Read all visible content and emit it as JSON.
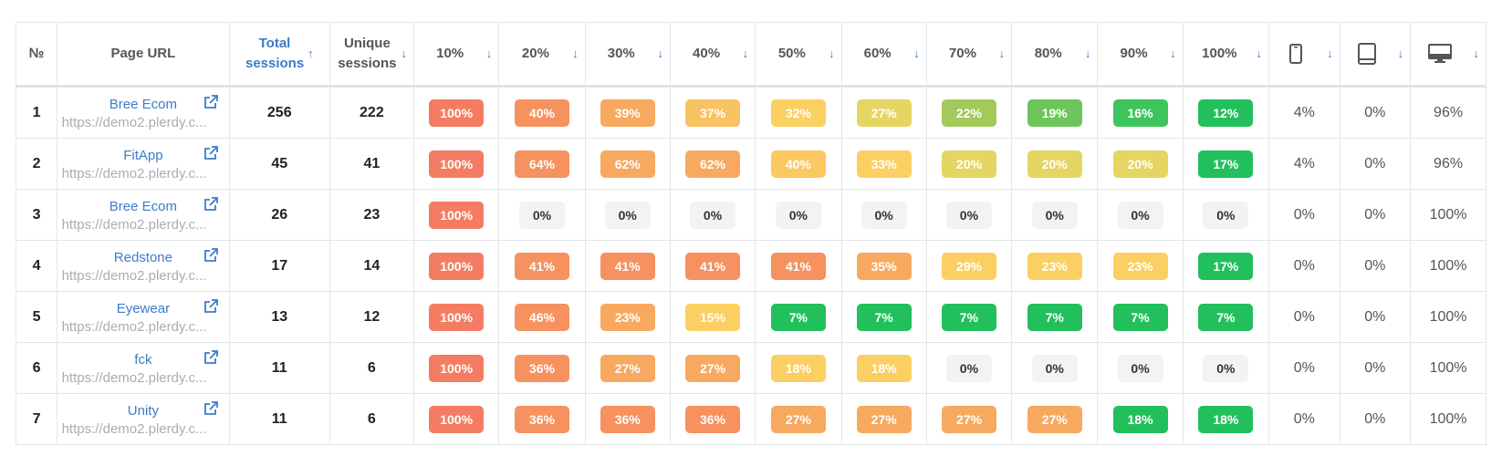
{
  "headers": {
    "num": "№",
    "page_url": "Page URL",
    "total_sessions": "Total sessions",
    "unique_sessions": "Unique sessions",
    "scroll": [
      "10%",
      "20%",
      "30%",
      "40%",
      "50%",
      "60%",
      "70%",
      "80%",
      "90%",
      "100%"
    ],
    "devices": [
      "mobile-icon",
      "tablet-icon",
      "desktop-icon"
    ],
    "sort_desc": "↓",
    "sort_asc": "↑"
  },
  "colors": {
    "accent": "#3d7cc9",
    "scale": [
      "#f47c62",
      "#f5925f",
      "#f7a960",
      "#f9c262",
      "#fbd062",
      "#e5d562",
      "#a3c95a",
      "#6dc65b",
      "#3ec45c",
      "#21c05c"
    ]
  },
  "rows": [
    {
      "num": "1",
      "name": "Bree Ecom",
      "url": "https://demo2.plerdy.c...",
      "total": "256",
      "unique": "222",
      "scroll": [
        "100%",
        "40%",
        "39%",
        "37%",
        "32%",
        "27%",
        "22%",
        "19%",
        "16%",
        "12%"
      ],
      "colors": [
        "#f47c62",
        "#f5925f",
        "#f7a960",
        "#f9c262",
        "#fbd062",
        "#e5d562",
        "#a3c95a",
        "#6dc65b",
        "#3ec45c",
        "#21c05c"
      ],
      "devices": [
        "4%",
        "0%",
        "96%"
      ]
    },
    {
      "num": "2",
      "name": "FitApp",
      "url": "https://demo2.plerdy.c...",
      "total": "45",
      "unique": "41",
      "scroll": [
        "100%",
        "64%",
        "62%",
        "62%",
        "40%",
        "33%",
        "20%",
        "20%",
        "20%",
        "17%"
      ],
      "colors": [
        "#f47c62",
        "#f5925f",
        "#f7a960",
        "#f7a960",
        "#fbc862",
        "#fbd062",
        "#e5d562",
        "#e5d562",
        "#e5d562",
        "#21c05c"
      ],
      "devices": [
        "4%",
        "0%",
        "96%"
      ]
    },
    {
      "num": "3",
      "name": "Bree Ecom",
      "url": "https://demo2.plerdy.c...",
      "total": "26",
      "unique": "23",
      "scroll": [
        "100%",
        "0%",
        "0%",
        "0%",
        "0%",
        "0%",
        "0%",
        "0%",
        "0%",
        "0%"
      ],
      "colors": [
        "#f47c62",
        "",
        "",
        "",
        "",
        "",
        "",
        "",
        "",
        ""
      ],
      "devices": [
        "0%",
        "0%",
        "100%"
      ]
    },
    {
      "num": "4",
      "name": "Redstone",
      "url": "https://demo2.plerdy.c...",
      "total": "17",
      "unique": "14",
      "scroll": [
        "100%",
        "41%",
        "41%",
        "41%",
        "41%",
        "35%",
        "29%",
        "23%",
        "23%",
        "17%"
      ],
      "colors": [
        "#f47c62",
        "#f5925f",
        "#f5925f",
        "#f5925f",
        "#f5925f",
        "#f7a960",
        "#fbcf62",
        "#fbcf62",
        "#fbcf62",
        "#21c05c"
      ],
      "devices": [
        "0%",
        "0%",
        "100%"
      ]
    },
    {
      "num": "5",
      "name": "Eyewear",
      "url": "https://demo2.plerdy.c...",
      "total": "13",
      "unique": "12",
      "scroll": [
        "100%",
        "46%",
        "23%",
        "15%",
        "7%",
        "7%",
        "7%",
        "7%",
        "7%",
        "7%"
      ],
      "colors": [
        "#f47c62",
        "#f5925f",
        "#f7a960",
        "#fbcf62",
        "#21c05c",
        "#21c05c",
        "#21c05c",
        "#21c05c",
        "#21c05c",
        "#21c05c"
      ],
      "devices": [
        "0%",
        "0%",
        "100%"
      ]
    },
    {
      "num": "6",
      "name": "fck",
      "url": "https://demo2.plerdy.c...",
      "total": "11",
      "unique": "6",
      "scroll": [
        "100%",
        "36%",
        "27%",
        "27%",
        "18%",
        "18%",
        "0%",
        "0%",
        "0%",
        "0%"
      ],
      "colors": [
        "#f47c62",
        "#f5925f",
        "#f7a960",
        "#f7a960",
        "#fbcf62",
        "#fbcf62",
        "",
        "",
        "",
        ""
      ],
      "devices": [
        "0%",
        "0%",
        "100%"
      ]
    },
    {
      "num": "7",
      "name": "Unity",
      "url": "https://demo2.plerdy.c...",
      "total": "11",
      "unique": "6",
      "scroll": [
        "100%",
        "36%",
        "36%",
        "36%",
        "27%",
        "27%",
        "27%",
        "27%",
        "18%",
        "18%"
      ],
      "colors": [
        "#f47c62",
        "#f5925f",
        "#f5925f",
        "#f5925f",
        "#f7a960",
        "#f7a960",
        "#f7a960",
        "#f7a960",
        "#21c05c",
        "#21c05c"
      ],
      "devices": [
        "0%",
        "0%",
        "100%"
      ]
    }
  ]
}
